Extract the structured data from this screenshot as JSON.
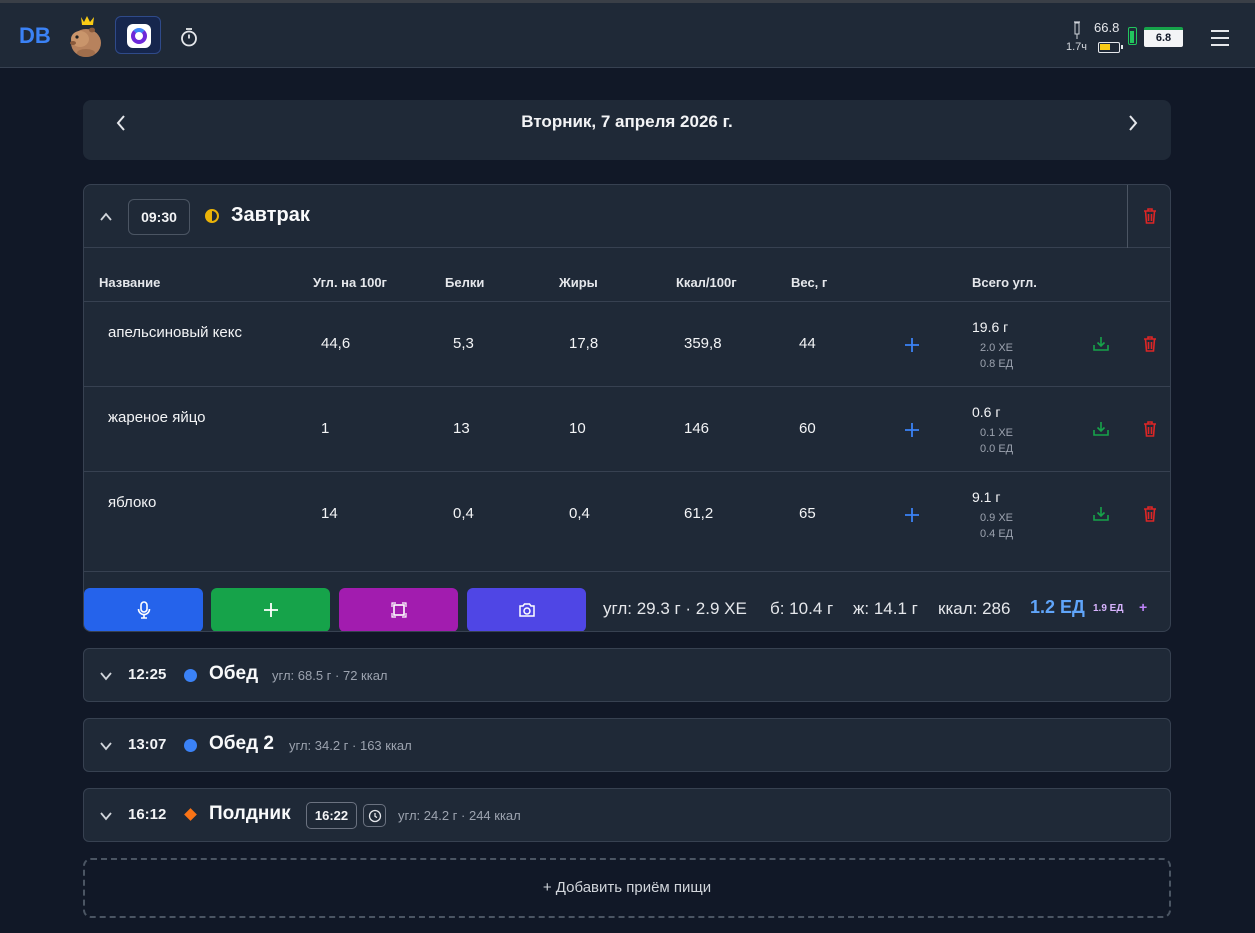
{
  "header": {
    "logo": "DB",
    "glucose_value": "66.8",
    "time_since": "1.7ч",
    "meter_value": "6.8"
  },
  "day": {
    "title": "Вторник, 7 апреля 2026 г."
  },
  "open_meal": {
    "time": "09:30",
    "name": "Завтрак",
    "columns": [
      "Название",
      "Угл. на 100г",
      "Белки",
      "Жиры",
      "Ккал/100г",
      "Вес, г",
      "Всего угл."
    ],
    "rows": [
      {
        "name": "апельсиновый кекс",
        "carbs100": "44,6",
        "protein": "5,3",
        "fat": "17,8",
        "kcal100": "359,8",
        "weight": "44",
        "total_g": "19.6 г",
        "xe": "2.0 ХЕ",
        "units": "0.8 ЕД"
      },
      {
        "name": "жареное яйцо",
        "carbs100": "1",
        "protein": "13",
        "fat": "10",
        "kcal100": "146",
        "weight": "60",
        "total_g": "0.6 г",
        "xe": "0.1 ХЕ",
        "units": "0.0 ЕД"
      },
      {
        "name": "яблоко",
        "carbs100": "14",
        "protein": "0,4",
        "fat": "0,4",
        "kcal100": "61,2",
        "weight": "65",
        "total_g": "9.1 г",
        "xe": "0.9 ХЕ",
        "units": "0.4 ЕД"
      }
    ],
    "summary": {
      "carbs": "угл: 29.3 г · 2.9 ХЕ",
      "protein": "б: 10.4 г",
      "fat": "ж: 14.1 г",
      "kcal": "ккал: 286",
      "units": "1.2 ЕД",
      "units_alt": "1.9 ЕД",
      "plus": "+"
    }
  },
  "closed_meals": [
    {
      "time": "12:25",
      "name": "Обед",
      "summary": "угл: 68.5 г · 72 ккал"
    },
    {
      "time": "13:07",
      "name": "Обед 2",
      "summary": "угл: 34.2 г · 163 ккал"
    },
    {
      "time": "16:12",
      "name": "Полдник",
      "extra_time": "16:22",
      "summary": "угл: 24.2 г · 244 ккал"
    }
  ],
  "add_meal_label": "+ Добавить приём пищи",
  "colors": {
    "bg": "#111827",
    "card": "#1f2937",
    "accent_blue": "#3b82f6",
    "mic_button": "#2563eb",
    "add_button": "#16a34a",
    "scan_button": "#a21caf",
    "camera_button": "#4f46e5",
    "delete_red": "#dc2626",
    "save_green": "#16a34a"
  }
}
